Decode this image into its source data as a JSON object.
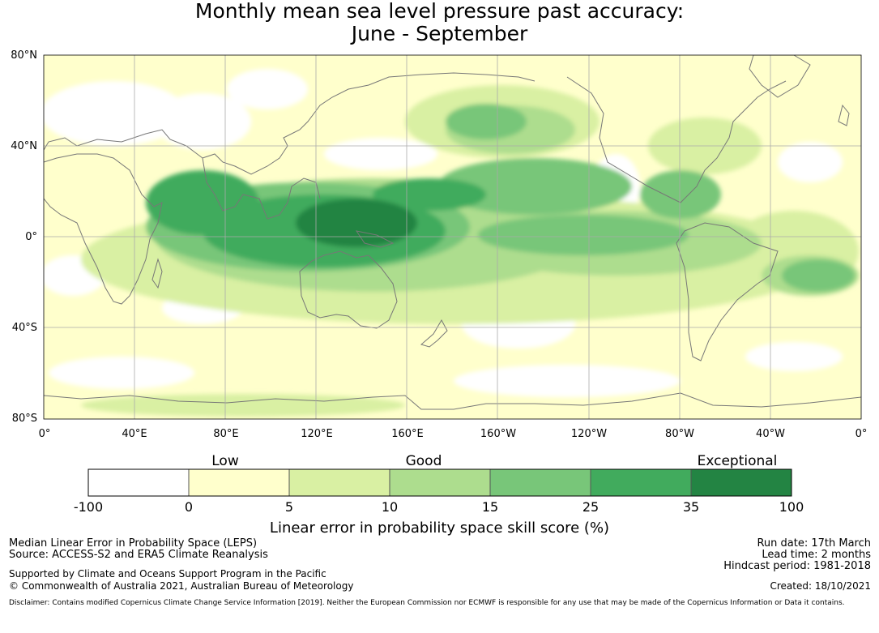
{
  "title_line1": "Monthly mean sea level pressure past accuracy:",
  "title_line2": "June - September",
  "lat_labels": [
    "80°N",
    "40°N",
    "0°",
    "40°S",
    "80°S"
  ],
  "lon_labels": [
    "0°",
    "40°E",
    "80°E",
    "120°E",
    "160°E",
    "160°W",
    "120°W",
    "80°W",
    "40°W",
    "0°"
  ],
  "colorbar": {
    "categories": [
      "Low",
      "Good",
      "Exceptional"
    ],
    "ticks": [
      "-100",
      "0",
      "5",
      "10",
      "15",
      "25",
      "35",
      "100"
    ],
    "colors": [
      "#ffffff",
      "#ffffcc",
      "#d9f0a3",
      "#addd8e",
      "#78c679",
      "#41ab5d",
      "#238443"
    ],
    "label": "Linear error in probability space skill score (%)"
  },
  "footer": {
    "left1": "Median Linear Error in Probability Space (LEPS)",
    "left2": "Source: ACCESS-S2 and ERA5 Climate Reanalysis",
    "left3": "Supported by Climate and Oceans Support Program in the Pacific",
    "left4": "© Commonwealth of Australia 2021, Australian Bureau of Meteorology",
    "right1": "Run date: 17th March",
    "right2": "Lead time: 2 months",
    "right3": "Hindcast period: 1981-2018",
    "right4": "Created: 18/10/2021",
    "disclaimer": "Disclaimer: Contains modified Copernicus Climate Change Service Information [2019]. Neither the European Commission nor ECMWF is responsible for any use that may be made of the Copernicus Information or Data it contains."
  },
  "colors": {
    "coastline": "#777777",
    "gridline": "#aaaaaa",
    "border": "#000000"
  }
}
